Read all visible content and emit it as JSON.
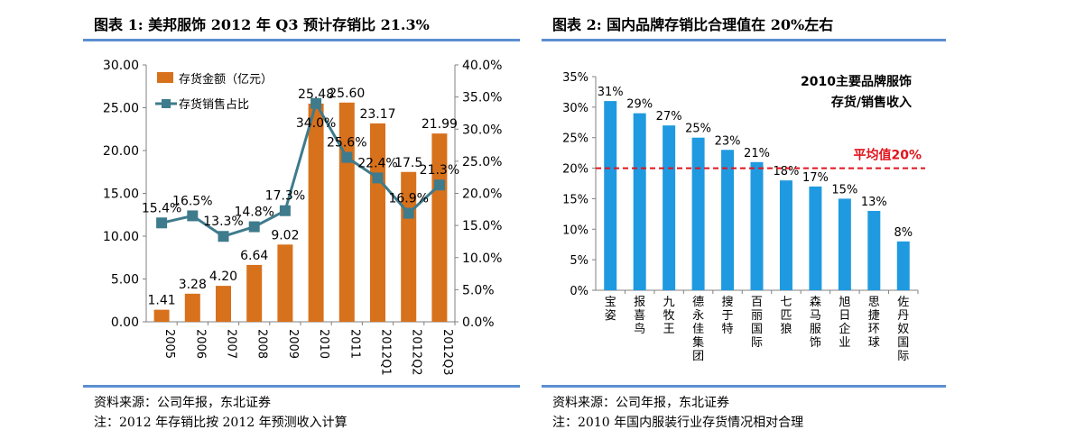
{
  "left_panel": {
    "title": "图表 1:  美邦服饰 2012 年 Q3 预计存销比 21.3%",
    "source": "资料来源：公司年报，东北证券",
    "note": "注：2012 年存销比按 2012 年预测收入计算"
  },
  "right_panel": {
    "title": "图表 2:  国内品牌存销比合理值在 20%左右",
    "source": "资料来源：公司年报，东北证券",
    "note": "注：2010 年国内服装行业存货情况相对合理"
  },
  "chart_data": [
    {
      "type": "bar",
      "categories": [
        "2005",
        "2006",
        "2007",
        "2008",
        "2009",
        "2010",
        "2011",
        "2012Q1",
        "2012Q2",
        "2012Q3"
      ],
      "series": [
        {
          "name": "存货金额（亿元）",
          "type": "bar",
          "axis": "left",
          "color": "#d7711c",
          "values": [
            1.41,
            3.28,
            4.2,
            6.64,
            9.02,
            25.48,
            25.6,
            23.17,
            17.5,
            21.99
          ],
          "labels": [
            "1.41",
            "3.28",
            "4.20",
            "6.64",
            "9.02",
            "25.48",
            "25.60",
            "23.17",
            "17.5",
            "21.99"
          ]
        },
        {
          "name": "存货销售占比",
          "type": "line",
          "axis": "right",
          "color": "#3e7b8c",
          "values": [
            15.4,
            16.5,
            13.3,
            14.8,
            17.3,
            34.0,
            25.6,
            22.4,
            16.9,
            21.3
          ],
          "labels": [
            "15.4%",
            "16.5%",
            "13.3%",
            "14.8%",
            "17.3%",
            "34.0%",
            "25.6%",
            "22.4%",
            "16.9%",
            "21.3%"
          ]
        }
      ],
      "y_left": {
        "min": 0,
        "max": 30,
        "ticks": [
          "0.00",
          "5.00",
          "10.00",
          "15.00",
          "20.00",
          "25.00",
          "30.00"
        ]
      },
      "y_right": {
        "min": 0,
        "max": 40,
        "ticks": [
          "0.0%",
          "5.0%",
          "10.0%",
          "15.0%",
          "20.0%",
          "25.0%",
          "30.0%",
          "35.0%",
          "40.0%"
        ]
      },
      "legend_position": "top-left"
    },
    {
      "type": "bar",
      "title": "2010主要品牌服饰",
      "subtitle": "存货/销售收入",
      "categories": [
        "宝姿",
        "报喜鸟",
        "九牧王",
        "德永佳集团",
        "搜于特",
        "百丽国际",
        "七匹狼",
        "森马服饰",
        "旭日企业",
        "思捷环球",
        "佐丹奴国际"
      ],
      "values": [
        31,
        29,
        27,
        25,
        23,
        21,
        18,
        17,
        15,
        13,
        8
      ],
      "labels": [
        "31%",
        "29%",
        "27%",
        "25%",
        "23%",
        "21%",
        "18%",
        "17%",
        "15%",
        "13%",
        "8%"
      ],
      "color": "#1f9ae0",
      "y_axis": {
        "min": 0,
        "max": 35,
        "ticks": [
          "0%",
          "5%",
          "10%",
          "15%",
          "20%",
          "25%",
          "30%",
          "35%"
        ]
      },
      "reference_line": {
        "value": 20,
        "label": "平均值20%",
        "color": "#e0141c"
      }
    }
  ]
}
